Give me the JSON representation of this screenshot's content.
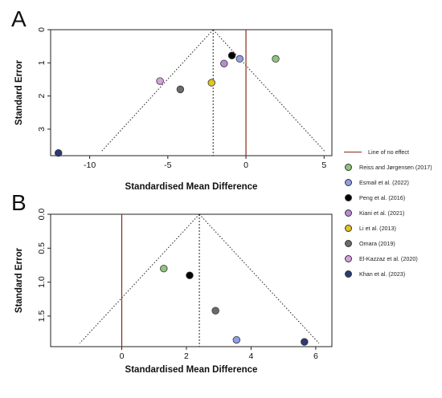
{
  "panels": [
    {
      "label": "A"
    },
    {
      "label": "B"
    }
  ],
  "legend": {
    "no_effect_label": "Line of no effect",
    "no_effect_color": "#8b2a16",
    "items": [
      {
        "name": "Reiss and Jørgensen (2017)",
        "color": "#8fc47a"
      },
      {
        "name": "Esmail et al. (2022)",
        "color": "#8f9fe6"
      },
      {
        "name": "Peng et al. (2016)",
        "color": "#000000"
      },
      {
        "name": "Kiani et al. (2021)",
        "color": "#b98ad4"
      },
      {
        "name": "Li et al. (2013)",
        "color": "#e3c51a"
      },
      {
        "name": "Omara (2019)",
        "color": "#6b6b6b"
      },
      {
        "name": "El-Kazzaz et al. (2020)",
        "color": "#d8a1dc"
      },
      {
        "name": "Khan et al. (2023)",
        "color": "#2c3a73"
      }
    ]
  },
  "chart_data": [
    {
      "type": "scatter",
      "title": "",
      "xlabel": "Standardised Mean Difference",
      "ylabel": "Standard Error",
      "xlim": [
        -12.5,
        5.5
      ],
      "ylim": [
        0,
        3.8
      ],
      "y_inverted": true,
      "xticks": [
        -10,
        -5,
        0,
        5
      ],
      "yticks": [
        0,
        1,
        2,
        3
      ],
      "no_effect_x": 0,
      "pooled_estimate": -2.1,
      "funnel_apex": [
        -2.1,
        0
      ],
      "funnel_base_se": 3.7,
      "funnel_base_x": [
        -9.3,
        5.1
      ],
      "grid": false,
      "points": [
        {
          "study": "Reiss and Jørgensen (2017)",
          "x": 1.9,
          "y": 0.88
        },
        {
          "study": "Esmail et al. (2022)",
          "x": -0.4,
          "y": 0.88
        },
        {
          "study": "Peng et al. (2016)",
          "x": -0.9,
          "y": 0.78
        },
        {
          "study": "Kiani et al. (2021)",
          "x": -1.4,
          "y": 1.02
        },
        {
          "study": "Li et al. (2013)",
          "x": -2.2,
          "y": 1.6
        },
        {
          "study": "Omara (2019)",
          "x": -4.2,
          "y": 1.8
        },
        {
          "study": "El-Kazzaz et al. (2020)",
          "x": -5.5,
          "y": 1.55
        },
        {
          "study": "Khan et al. (2023)",
          "x": -12.0,
          "y": 3.72
        }
      ]
    },
    {
      "type": "scatter",
      "title": "",
      "xlabel": "Standardised Mean Difference",
      "ylabel": "Standard Error",
      "xlim": [
        -2.2,
        6.5
      ],
      "ylim": [
        0,
        1.95
      ],
      "y_inverted": true,
      "xticks": [
        0,
        2,
        4,
        6
      ],
      "yticks": [
        0.0,
        0.5,
        1.0,
        1.5
      ],
      "no_effect_x": 0,
      "pooled_estimate": 2.4,
      "funnel_apex": [
        2.4,
        0
      ],
      "funnel_base_se": 1.9,
      "funnel_base_x": [
        -1.3,
        6.1
      ],
      "grid": false,
      "points": [
        {
          "study": "Reiss and Jørgensen (2017)",
          "x": 1.3,
          "y": 0.8
        },
        {
          "study": "Esmail et al. (2022)",
          "x": 3.55,
          "y": 1.85
        },
        {
          "study": "Peng et al. (2016)",
          "x": 2.1,
          "y": 0.9
        },
        {
          "study": "Omara (2019)",
          "x": 2.9,
          "y": 1.42
        },
        {
          "study": "Khan et al. (2023)",
          "x": 5.65,
          "y": 1.88
        }
      ]
    }
  ]
}
